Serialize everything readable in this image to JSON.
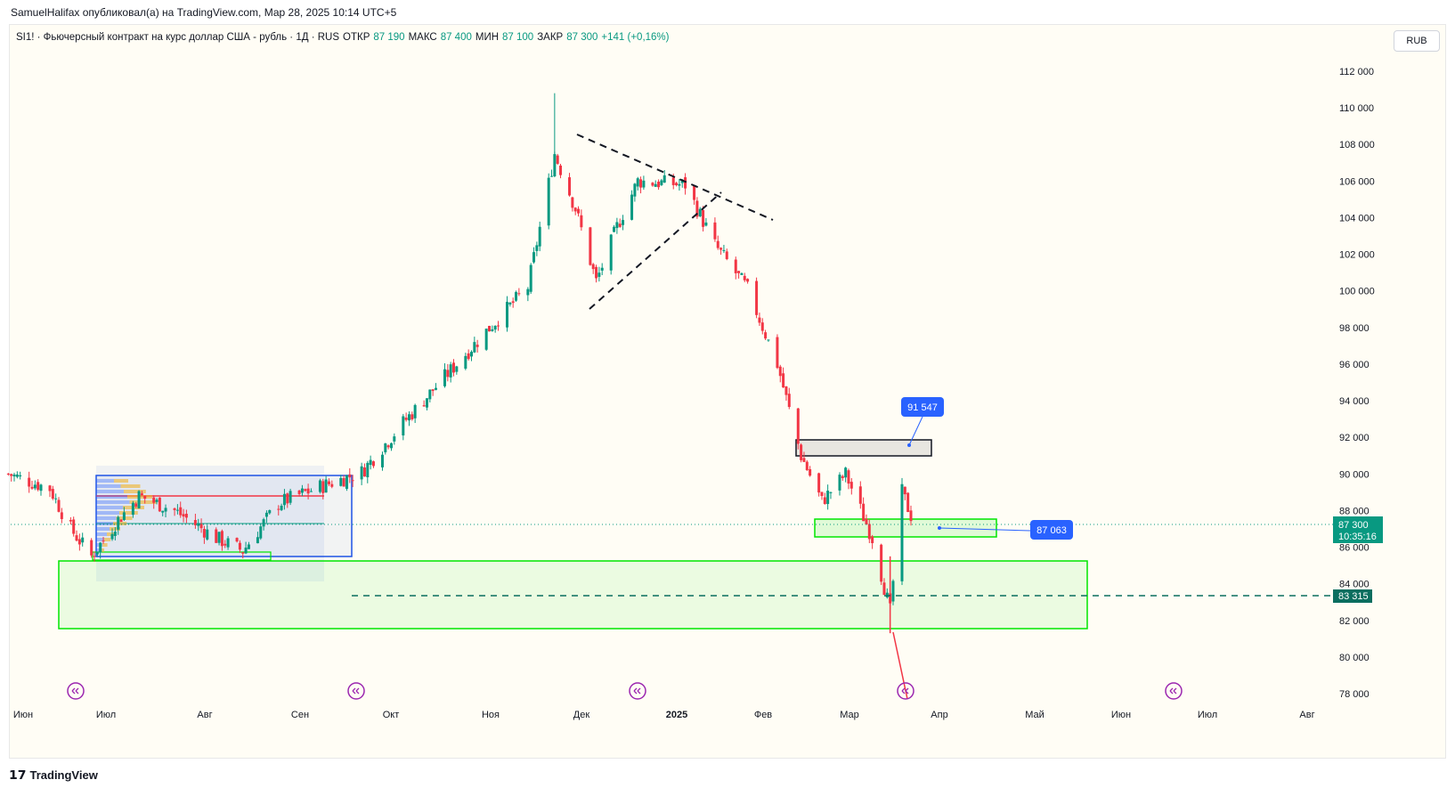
{
  "header": {
    "publisher_line": "SamuelHalifax опубликовал(а) на TradingView.com, Мар 28, 2025 10:14 UTC+5"
  },
  "legend": {
    "symbol": "SI1! · Фьючерсный контракт на курс доллар США - рубль · 1Д · RUS",
    "open_label": "ОТКР",
    "open_value": "87 190",
    "high_label": "МАКС",
    "high_value": "87 400",
    "low_label": "МИН",
    "low_value": "87 100",
    "close_label": "ЗАКР",
    "close_value": "87 300",
    "change": "+141 (+0,16%)"
  },
  "currency_button": "RUB",
  "footer": {
    "brand": "TradingView"
  },
  "colors": {
    "up": "#089981",
    "down": "#f23645",
    "zone_green": "#00e600",
    "zone_blue": "#1e53e5",
    "last_price": "#089981",
    "callout": "#2962ff"
  },
  "price_labels": {
    "last_price": "87 300",
    "countdown": "10:35:16",
    "dashed_level": "83 315"
  },
  "callouts": [
    {
      "text": "91 547"
    },
    {
      "text": "87 063"
    }
  ],
  "chart_data": {
    "type": "candlestick",
    "ylim": [
      77000,
      113500
    ],
    "y_ticks": [
      "112 000",
      "110 000",
      "108 000",
      "106 000",
      "104 000",
      "102 000",
      "100 000",
      "98 000",
      "96 000",
      "94 000",
      "92 000",
      "90 000",
      "88 000",
      "86 000",
      "84 000",
      "82 000",
      "80 000",
      "78 000"
    ],
    "x_ticks": [
      "Июн",
      "Июл",
      "Авг",
      "Сен",
      "Окт",
      "Ноя",
      "Дек",
      "2025",
      "Фев",
      "Мар",
      "Апр",
      "Май",
      "Июн",
      "Июл",
      "Авг"
    ],
    "close_path": [
      {
        "d": "2024-05-27",
        "c": 90000
      },
      {
        "d": "2024-06-10",
        "c": 89200
      },
      {
        "d": "2024-06-17",
        "c": 87000
      },
      {
        "d": "2024-06-24",
        "c": 85500
      },
      {
        "d": "2024-07-03",
        "c": 87500
      },
      {
        "d": "2024-07-10",
        "c": 88800
      },
      {
        "d": "2024-07-22",
        "c": 88000
      },
      {
        "d": "2024-08-05",
        "c": 86500
      },
      {
        "d": "2024-08-14",
        "c": 85800
      },
      {
        "d": "2024-08-26",
        "c": 88400
      },
      {
        "d": "2024-09-09",
        "c": 89300
      },
      {
        "d": "2024-09-23",
        "c": 90100
      },
      {
        "d": "2024-10-07",
        "c": 92800
      },
      {
        "d": "2024-10-21",
        "c": 95300
      },
      {
        "d": "2024-11-04",
        "c": 97800
      },
      {
        "d": "2024-11-18",
        "c": 100200
      },
      {
        "d": "2024-11-27",
        "c": 107500
      },
      {
        "d": "2024-12-04",
        "c": 104500
      },
      {
        "d": "2024-12-11",
        "c": 100500
      },
      {
        "d": "2024-12-18",
        "c": 103500
      },
      {
        "d": "2024-12-25",
        "c": 106000
      },
      {
        "d": "2025-01-10",
        "c": 105800
      },
      {
        "d": "2025-01-20",
        "c": 102500
      },
      {
        "d": "2025-01-31",
        "c": 100100
      },
      {
        "d": "2025-02-10",
        "c": 96000
      },
      {
        "d": "2025-02-18",
        "c": 91000
      },
      {
        "d": "2025-02-25",
        "c": 88500
      },
      {
        "d": "2025-03-05",
        "c": 90000
      },
      {
        "d": "2025-03-14",
        "c": 86500
      },
      {
        "d": "2025-03-20",
        "c": 82500
      },
      {
        "d": "2025-03-24",
        "c": 89000
      },
      {
        "d": "2025-03-28",
        "c": 87300
      }
    ],
    "high": 110800,
    "low": 81300
  }
}
